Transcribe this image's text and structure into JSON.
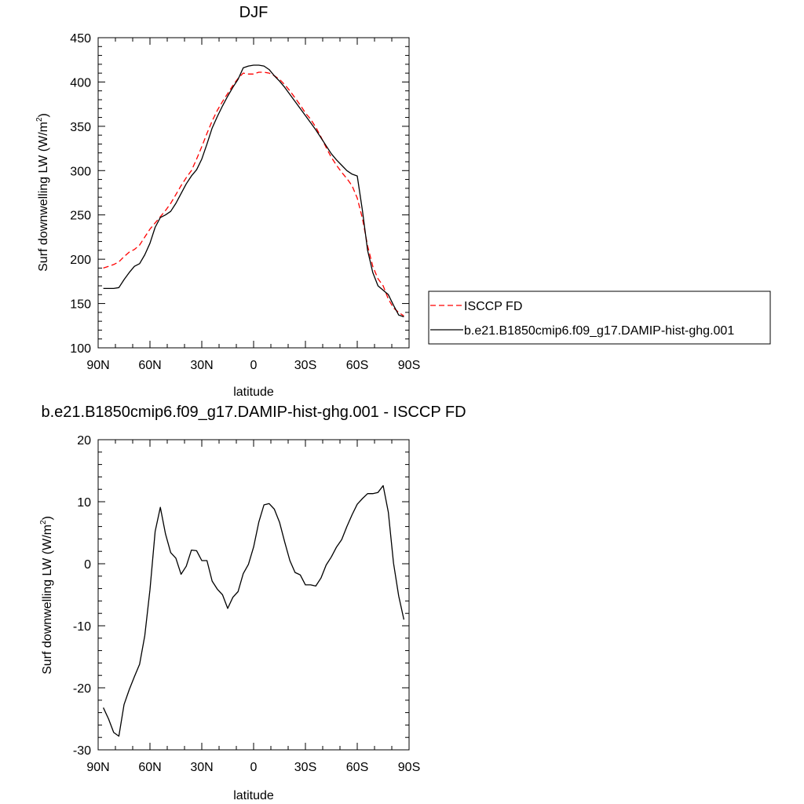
{
  "chart_data": [
    {
      "type": "line",
      "title": "DJF",
      "xlabel": "latitude",
      "ylabel": "Surf downwelling LW (W/m",
      "ylabel_sup": "2",
      "ylabel_end": ")",
      "xlim": [
        -90,
        90
      ],
      "ylim": [
        100,
        450
      ],
      "xticks": [
        -90,
        -60,
        -30,
        0,
        30,
        60,
        90
      ],
      "xtick_labels": [
        "90N",
        "60N",
        "30N",
        "0",
        "30S",
        "60S",
        "90S"
      ],
      "yticks": [
        100,
        150,
        200,
        250,
        300,
        350,
        400,
        450
      ],
      "ytick_labels": [
        "100",
        "150",
        "200",
        "250",
        "300",
        "350",
        "400",
        "450"
      ],
      "legend_position": "right, outside the plot",
      "series": [
        {
          "name": "ISCCP FD",
          "color": "#ff0000",
          "dash": "dashed",
          "x": [
            -87,
            -84,
            -81,
            -78,
            -75,
            -72,
            -69,
            -66,
            -63,
            -60,
            -57,
            -54,
            -51,
            -48,
            -45,
            -42,
            -39,
            -36,
            -33,
            -30,
            -27,
            -24,
            -21,
            -18,
            -15,
            -12,
            -9,
            -6,
            -3,
            0,
            3,
            6,
            9,
            12,
            15,
            18,
            21,
            24,
            27,
            30,
            33,
            36,
            39,
            42,
            45,
            48,
            51,
            54,
            57,
            60,
            63,
            66,
            69,
            72,
            75,
            78,
            81,
            84,
            87
          ],
          "y": [
            190,
            192,
            194,
            197,
            203,
            208,
            211,
            216,
            225,
            234,
            241,
            248,
            255,
            263,
            273,
            283,
            292,
            300,
            313,
            327,
            342,
            356,
            368,
            378,
            387,
            396,
            404,
            410,
            409,
            409,
            411,
            411,
            410,
            407,
            403,
            397,
            390,
            382,
            374,
            365,
            358,
            349,
            338,
            326,
            315,
            306,
            298,
            291,
            283,
            269,
            246,
            215,
            192,
            178,
            170,
            155,
            145,
            140,
            136
          ]
        },
        {
          "name": "b.e21.B1850cmip6.f09_g17.DAMIP-hist-ghg.001",
          "color": "#000000",
          "dash": "solid",
          "x": [
            -87,
            -84,
            -81,
            -78,
            -75,
            -72,
            -69,
            -66,
            -63,
            -60,
            -57,
            -54,
            -51,
            -48,
            -45,
            -42,
            -39,
            -36,
            -33,
            -30,
            -27,
            -24,
            -21,
            -18,
            -15,
            -12,
            -9,
            -6,
            -3,
            0,
            3,
            6,
            9,
            12,
            15,
            18,
            21,
            24,
            27,
            30,
            33,
            36,
            39,
            42,
            45,
            48,
            51,
            54,
            57,
            60,
            63,
            66,
            69,
            72,
            75,
            78,
            81,
            84,
            87
          ],
          "y": [
            167,
            167,
            167,
            168,
            177,
            185,
            192,
            195,
            205,
            218,
            236,
            247,
            250,
            254,
            263,
            274,
            285,
            294,
            301,
            313,
            330,
            348,
            361,
            373,
            384,
            394,
            403,
            416,
            418,
            419,
            419,
            418,
            414,
            407,
            401,
            394,
            386,
            378,
            370,
            362,
            354,
            346,
            337,
            328,
            319,
            312,
            306,
            300,
            296,
            294,
            255,
            210,
            185,
            170,
            165,
            160,
            148,
            137,
            135
          ]
        }
      ]
    },
    {
      "type": "line",
      "title": "b.e21.B1850cmip6.f09_g17.DAMIP-hist-ghg.001 - ISCCP FD",
      "xlabel": "latitude",
      "ylabel": "Surf downwelling LW (W/m",
      "ylabel_sup": "2",
      "ylabel_end": ")",
      "xlim": [
        -90,
        90
      ],
      "ylim": [
        -30,
        20
      ],
      "xticks": [
        -90,
        -60,
        -30,
        0,
        30,
        60,
        90
      ],
      "xtick_labels": [
        "90N",
        "60N",
        "30N",
        "0",
        "30S",
        "60S",
        "90S"
      ],
      "yticks": [
        -30,
        -20,
        -10,
        0,
        10,
        20
      ],
      "ytick_labels": [
        "-30",
        "-20",
        "-10",
        "0",
        "10",
        "20"
      ],
      "series": [
        {
          "color": "#000000",
          "dash": "solid",
          "x": [
            -87,
            -84,
            -81,
            -78,
            -75,
            -72,
            -69,
            -66,
            -63,
            -60,
            -57,
            -54,
            -51,
            -48,
            -45,
            -42,
            -39,
            -36,
            -33,
            -30,
            -27,
            -24,
            -21,
            -18,
            -15,
            -12,
            -9,
            -6,
            -3,
            0,
            3,
            6,
            9,
            12,
            15,
            18,
            21,
            24,
            27,
            30,
            33,
            36,
            39,
            42,
            45,
            48,
            51,
            54,
            57,
            60,
            63,
            66,
            69,
            72,
            75,
            78,
            81,
            84,
            87
          ],
          "y": [
            -23.2,
            -25,
            -27.2,
            -27.8,
            -22.7,
            -20.3,
            -18.2,
            -16.2,
            -11.6,
            -4.2,
            5.2,
            9.1,
            4.8,
            1.8,
            0.9,
            -1.7,
            -0.4,
            2.2,
            2.1,
            0.5,
            0.5,
            -2.8,
            -4.1,
            -5.0,
            -7.2,
            -5.4,
            -4.5,
            -1.6,
            -0.1,
            2.7,
            6.7,
            9.5,
            9.7,
            8.8,
            6.7,
            3.5,
            0.5,
            -1.4,
            -1.8,
            -3.4,
            -3.4,
            -3.6,
            -2.3,
            -0.2,
            1.1,
            2.7,
            3.9,
            6.0,
            7.9,
            9.6,
            10.5,
            11.3,
            11.3,
            11.5,
            12.6,
            8.3,
            0.1,
            -5.2,
            -9.0
          ]
        }
      ]
    }
  ]
}
